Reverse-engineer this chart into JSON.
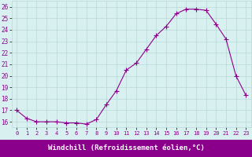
{
  "x": [
    0,
    1,
    2,
    3,
    4,
    5,
    6,
    7,
    8,
    9,
    10,
    11,
    12,
    13,
    14,
    15,
    16,
    17,
    18,
    19,
    20,
    21,
    22,
    23
  ],
  "y": [
    17.0,
    16.3,
    16.0,
    16.0,
    16.0,
    15.9,
    15.9,
    15.8,
    16.2,
    17.5,
    18.7,
    20.5,
    21.1,
    22.3,
    23.5,
    24.3,
    25.4,
    25.8,
    25.8,
    25.7,
    24.5,
    23.2,
    20.0,
    18.3
  ],
  "line_color": "#8b008b",
  "marker": "+",
  "marker_color": "#8b008b",
  "bg_color": "#d8f0f0",
  "grid_color": "#b8d8d8",
  "xlabel": "Windchill (Refroidissement éolien,°C)",
  "ylabel_ticks": [
    16,
    17,
    18,
    19,
    20,
    21,
    22,
    23,
    24,
    25,
    26
  ],
  "xlim": [
    -0.5,
    23.5
  ],
  "ylim": [
    15.5,
    26.5
  ],
  "xlabel_color": "#ffffff",
  "xlabel_bg": "#8b008b",
  "tick_label_color": "#8b008b",
  "font_size": 6.5,
  "marker_size": 4
}
